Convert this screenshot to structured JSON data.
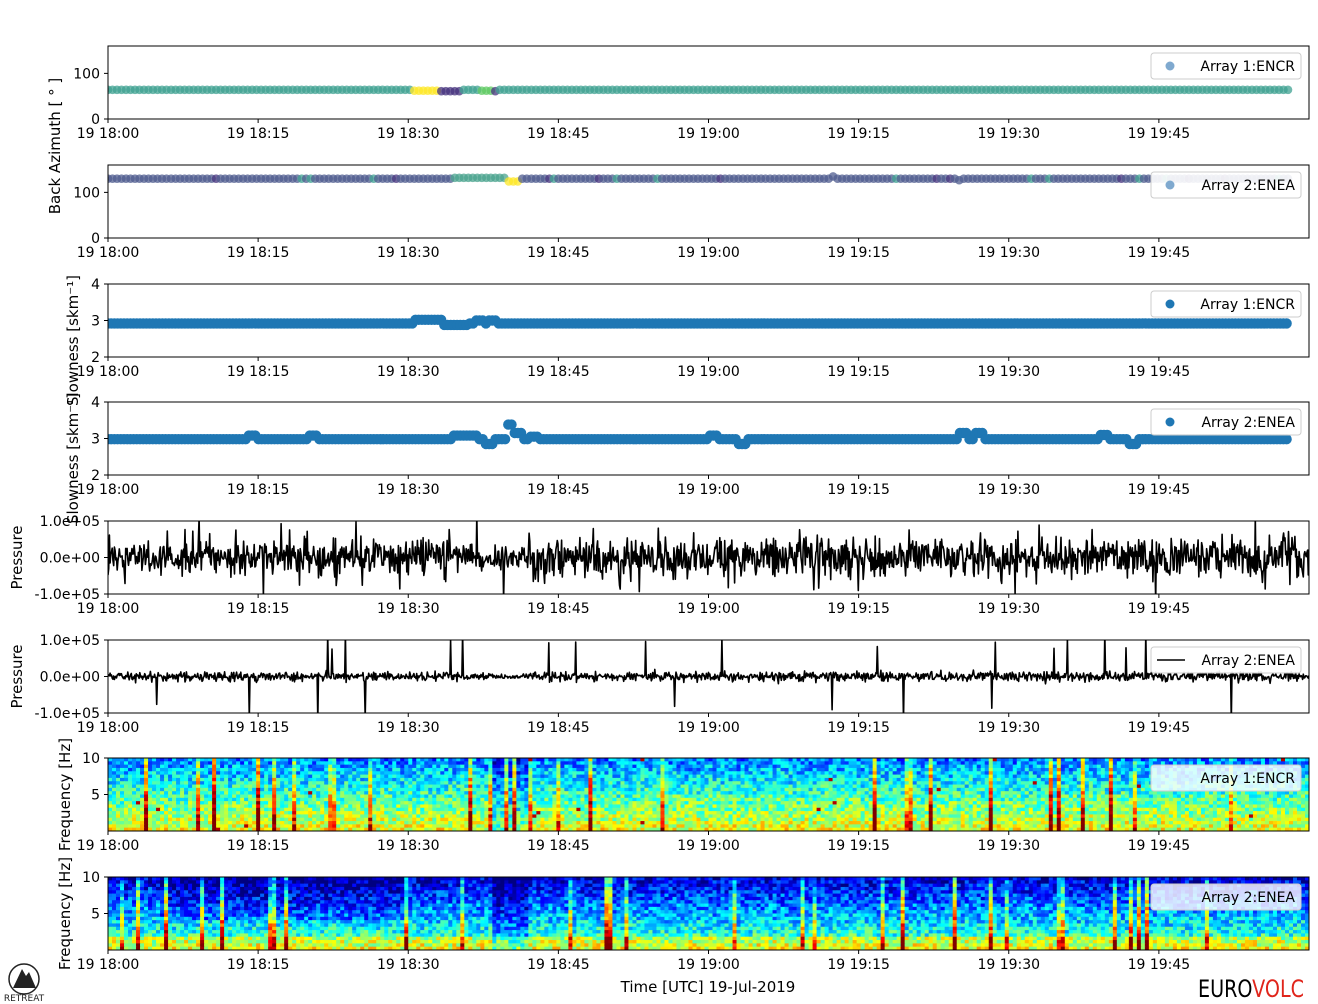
{
  "figure": {
    "xlabel": "Time [UTC] 19-Jul-2019",
    "logo_left_text": "RETREAT",
    "logo_right_part1": "EURO",
    "logo_right_part2": "VOLC",
    "colors": {
      "logo_black": "#000000",
      "logo_red": "#e0251b"
    }
  },
  "chart_data": [
    {
      "type": "scatter",
      "panel": "back-azimuth-array-1",
      "ylabel": "Back Azimuth [ ° ]",
      "ylim": [
        0,
        160
      ],
      "yticks": [
        "0",
        "100"
      ],
      "ytick_values": [
        0,
        100
      ],
      "xlim": [
        "18:00",
        "20:00"
      ],
      "xticks": [
        "19 18:00",
        "19 18:15",
        "19 18:30",
        "19 18:45",
        "19 19:00",
        "19 19:15",
        "19 19:30",
        "19 19:45"
      ],
      "legend": {
        "label": "Array 1:ENCR",
        "position": "upper-right",
        "marker_color": "#7fa9cf"
      },
      "colormap": "viridis",
      "series": [
        {
          "name": "Array 1:ENCR",
          "baseline": 64,
          "x_start_min": 0,
          "x_end_min": 118,
          "segments": [
            {
              "from": 0,
              "to": 30.5,
              "y": 64,
              "color": "#3fa191"
            },
            {
              "from": 30.5,
              "to": 33,
              "y": 62,
              "color": "#fde725"
            },
            {
              "from": 33,
              "to": 35.5,
              "y": 61,
              "color": "#46337e"
            },
            {
              "from": 35.5,
              "to": 37,
              "y": 64,
              "color": "#3fa191"
            },
            {
              "from": 37,
              "to": 38.5,
              "y": 62,
              "color": "#5ec962"
            },
            {
              "from": 38.5,
              "to": 39,
              "y": 61,
              "color": "#46337e"
            },
            {
              "from": 39,
              "to": 118,
              "y": 64,
              "color": "#3fa191"
            }
          ]
        }
      ]
    },
    {
      "type": "scatter",
      "panel": "back-azimuth-array-2",
      "ylabel": "",
      "ylim": [
        0,
        160
      ],
      "yticks": [
        "0",
        "100"
      ],
      "ytick_values": [
        0,
        100
      ],
      "xlim": [
        "18:00",
        "20:00"
      ],
      "xticks": [
        "19 18:00",
        "19 18:15",
        "19 18:30",
        "19 18:45",
        "19 19:00",
        "19 19:15",
        "19 19:30",
        "19 19:45"
      ],
      "legend": {
        "label": "Array 2:ENEA",
        "position": "upper-right",
        "marker_color": "#7fa9cf"
      },
      "colormap": "viridis",
      "series": [
        {
          "name": "Array 2:ENEA",
          "baseline": 130,
          "x_start_min": 0,
          "x_end_min": 118,
          "segments": [
            {
              "from": 0,
              "to": 34.5,
              "y": 130,
              "color": "#4f5c8f"
            },
            {
              "from": 34.5,
              "to": 40,
              "y": 132,
              "color": "#4aa38e"
            },
            {
              "from": 40,
              "to": 41,
              "y": 124,
              "color": "#fde725"
            },
            {
              "from": 41,
              "to": 118,
              "y": 130,
              "color": "#4f5c8f"
            }
          ]
        }
      ]
    },
    {
      "type": "scatter",
      "panel": "slowness-array-1",
      "ylabel": "Slowness [skm⁻¹]",
      "ylim": [
        2,
        4
      ],
      "yticks": [
        "2",
        "3",
        "4"
      ],
      "ytick_values": [
        2,
        3,
        4
      ],
      "xlim": [
        "18:00",
        "20:00"
      ],
      "xticks": [
        "19 18:00",
        "19 18:15",
        "19 18:30",
        "19 18:45",
        "19 19:00",
        "19 19:15",
        "19 19:30",
        "19 19:45"
      ],
      "legend": {
        "label": "Array 1:ENCR",
        "position": "upper-right",
        "marker_color": "#1f77b4"
      },
      "series": [
        {
          "name": "Array 1:ENCR",
          "baseline": 2.92,
          "x_start_min": 0,
          "x_end_min": 118,
          "segments": [
            {
              "from": 30.5,
              "to": 33.5,
              "y": 3.02
            },
            {
              "from": 33.5,
              "to": 36,
              "y": 2.88
            },
            {
              "from": 36.5,
              "to": 37.5,
              "y": 3.0
            },
            {
              "from": 38,
              "to": 39,
              "y": 3.0
            }
          ]
        }
      ]
    },
    {
      "type": "scatter",
      "panel": "slowness-array-2",
      "ylabel": "Slowness [skm⁻¹]",
      "ylim": [
        2,
        4
      ],
      "yticks": [
        "2",
        "3",
        "4"
      ],
      "ytick_values": [
        2,
        3,
        4
      ],
      "xlim": [
        "18:00",
        "20:00"
      ],
      "xticks": [
        "19 18:00",
        "19 18:15",
        "19 18:30",
        "19 18:45",
        "19 19:00",
        "19 19:15",
        "19 19:30",
        "19 19:45"
      ],
      "legend": {
        "label": "Array 2:ENEA",
        "position": "upper-right",
        "marker_color": "#1f77b4"
      },
      "series": [
        {
          "name": "Array 2:ENEA",
          "baseline": 2.98,
          "x_start_min": 0,
          "x_end_min": 118,
          "segments": [
            {
              "from": 14,
              "to": 15,
              "y": 3.08
            },
            {
              "from": 20,
              "to": 21,
              "y": 3.08
            },
            {
              "from": 34.5,
              "to": 37,
              "y": 3.08
            },
            {
              "from": 37.5,
              "to": 38.5,
              "y": 2.85
            },
            {
              "from": 40,
              "to": 40.5,
              "y": 3.38
            },
            {
              "from": 40.5,
              "to": 41.5,
              "y": 3.15
            },
            {
              "from": 42,
              "to": 43,
              "y": 3.05
            },
            {
              "from": 60,
              "to": 61,
              "y": 3.08
            },
            {
              "from": 63,
              "to": 64,
              "y": 2.85
            },
            {
              "from": 85,
              "to": 86,
              "y": 3.15
            },
            {
              "from": 86.5,
              "to": 87.5,
              "y": 3.15
            },
            {
              "from": 99,
              "to": 100,
              "y": 3.1
            },
            {
              "from": 102,
              "to": 103,
              "y": 2.85
            }
          ]
        }
      ]
    },
    {
      "type": "line",
      "panel": "pressure-array-1",
      "ylabel": "Pressure",
      "ylim": [
        -100000,
        100000
      ],
      "yticks": [
        "-1.0e+05",
        "0.0e+00",
        "1.0e+05"
      ],
      "ytick_values": [
        -100000,
        0,
        100000
      ],
      "xlim": [
        "18:00",
        "20:00"
      ],
      "xticks": [
        "19 18:00",
        "19 18:15",
        "19 18:30",
        "19 18:45",
        "19 19:00",
        "19 19:15",
        "19 19:30",
        "19 19:45"
      ],
      "series": [
        {
          "name": "",
          "color": "#000000",
          "amplitude_typical": 70000,
          "amplitude_max": 100000
        }
      ]
    },
    {
      "type": "line",
      "panel": "pressure-array-2",
      "ylabel": "Pressure",
      "ylim": [
        -100000,
        100000
      ],
      "yticks": [
        "-1.0e+05",
        "0.0e+00",
        "1.0e+05"
      ],
      "ytick_values": [
        -100000,
        0,
        100000
      ],
      "xlim": [
        "18:00",
        "20:00"
      ],
      "xticks": [
        "19 18:00",
        "19 18:15",
        "19 18:30",
        "19 18:45",
        "19 19:00",
        "19 19:15",
        "19 19:30",
        "19 19:45"
      ],
      "legend": {
        "label": "Array 2:ENEA",
        "position": "upper-right"
      },
      "series": [
        {
          "name": "Array 2:ENEA",
          "color": "#000000",
          "amplitude_typical": 25000,
          "amplitude_max": 100000
        }
      ]
    },
    {
      "type": "heatmap",
      "panel": "spectrogram-array-1",
      "ylabel": "Frequency [Hz]",
      "ylim": [
        0,
        10
      ],
      "yticks": [
        "5",
        "10"
      ],
      "ytick_values": [
        5,
        10
      ],
      "xlim": [
        "18:00",
        "20:00"
      ],
      "xticks": [
        "19 18:00",
        "19 18:15",
        "19 18:30",
        "19 18:45",
        "19 19:00",
        "19 19:15",
        "19 19:30",
        "19 19:45"
      ],
      "legend": {
        "label": "Array 1:ENCR",
        "position": "upper-right"
      },
      "colormap": "jet",
      "intensity": "high"
    },
    {
      "type": "heatmap",
      "panel": "spectrogram-array-2",
      "ylabel": "Frequency [Hz]",
      "ylim": [
        0,
        10
      ],
      "yticks": [
        "5",
        "10"
      ],
      "ytick_values": [
        5,
        10
      ],
      "xlim": [
        "18:00",
        "20:00"
      ],
      "xticks": [
        "19 18:00",
        "19 18:15",
        "19 18:30",
        "19 18:45",
        "19 19:00",
        "19 19:15",
        "19 19:30",
        "19 19:45"
      ],
      "legend": {
        "label": "Array 2:ENEA",
        "position": "upper-right"
      },
      "colormap": "jet",
      "intensity": "low"
    }
  ]
}
